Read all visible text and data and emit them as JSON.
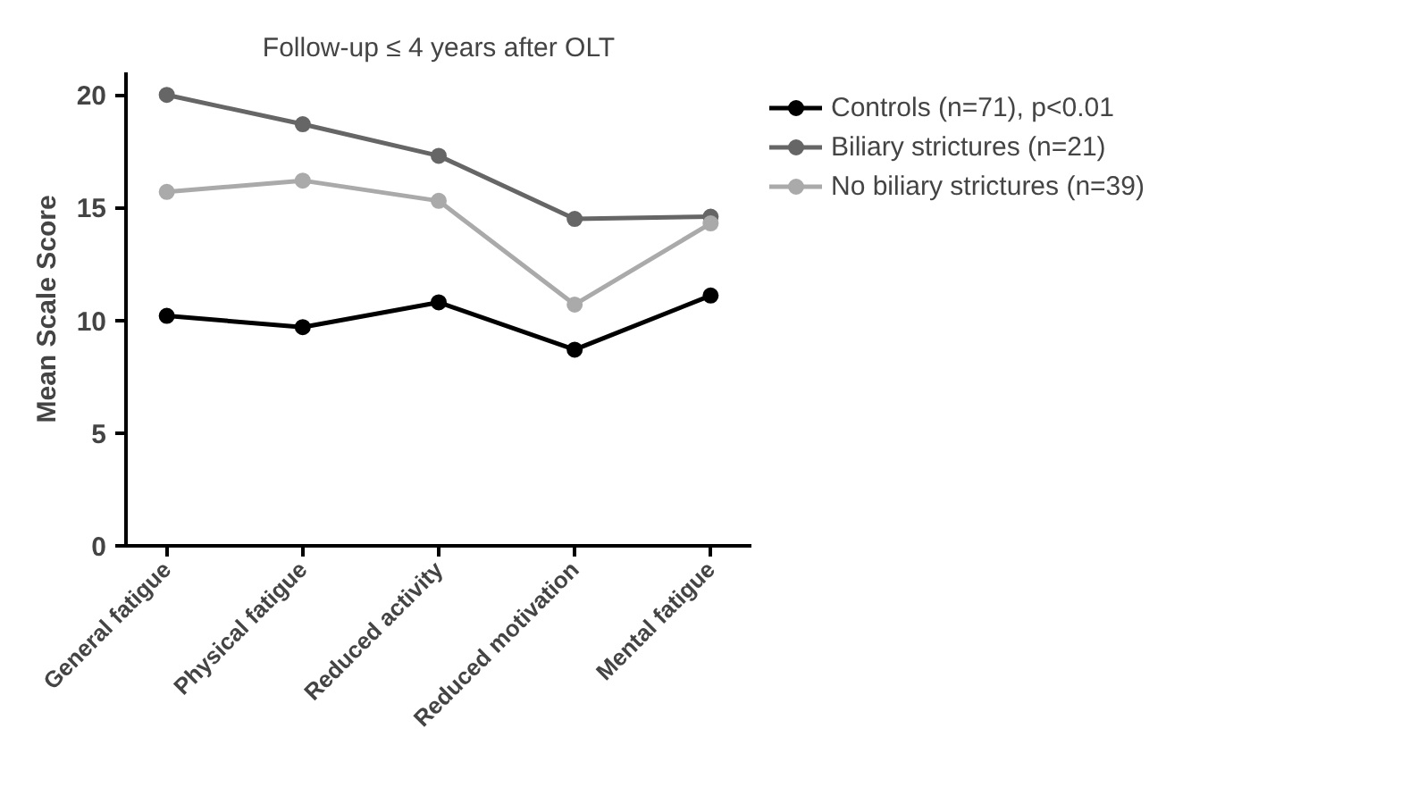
{
  "chart_data": {
    "type": "line",
    "title": "Follow-up ≤ 4 years after OLT",
    "ylabel": "Mean Scale Score",
    "categories": [
      "General fatigue",
      "Physical fatigue",
      "Reduced activity",
      "Reduced motivation",
      "Mental fatigue"
    ],
    "series": [
      {
        "name": "Controls (n=71), p<0.01",
        "color": "#000000",
        "values": [
          10.2,
          9.7,
          10.8,
          8.7,
          11.1
        ]
      },
      {
        "name": "Biliary strictures (n=21)",
        "color": "#666666",
        "values": [
          20.0,
          18.7,
          17.3,
          14.5,
          14.6
        ]
      },
      {
        "name": "No biliary strictures (n=39)",
        "color": "#aaaaaa",
        "values": [
          15.7,
          16.2,
          15.3,
          10.7,
          14.3
        ]
      }
    ],
    "ylim": [
      0,
      21
    ],
    "yticks": [
      0,
      5,
      10,
      15,
      20
    ],
    "grid": false,
    "legend": "right",
    "marker": "circle",
    "line_style": "solid"
  }
}
